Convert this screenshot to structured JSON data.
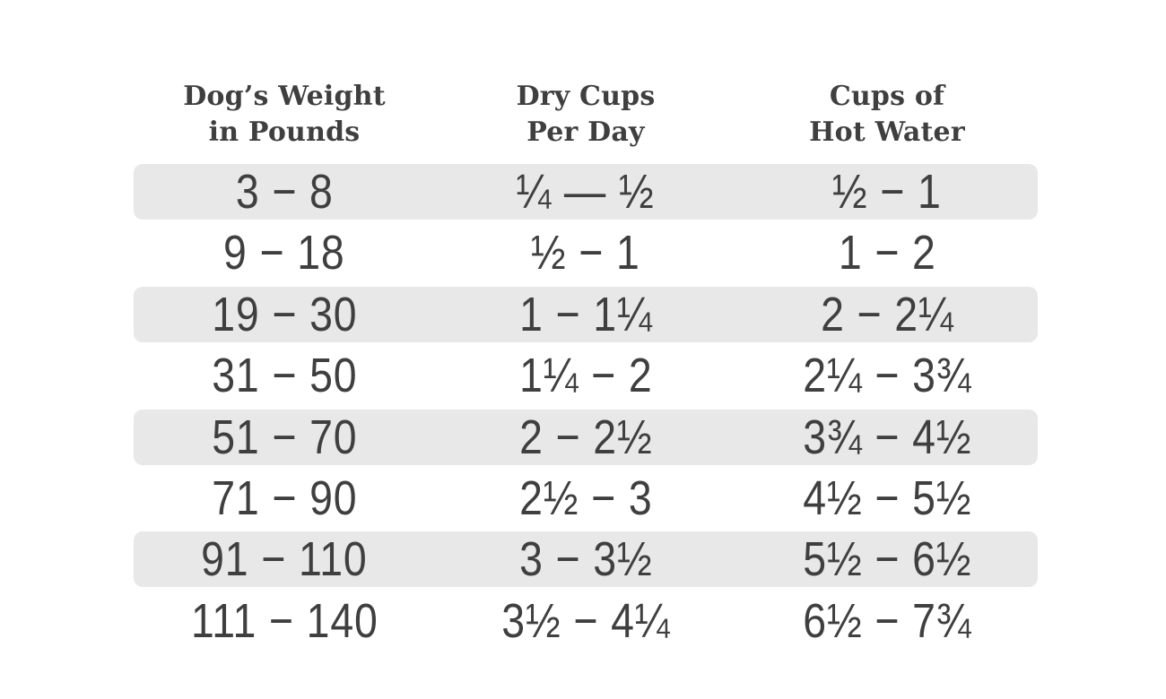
{
  "page": {
    "background_color": "#ffffff",
    "text_color": "#3f3f3f",
    "shaded_row_color": "#e8e8e8"
  },
  "table": {
    "headers": [
      {
        "line1": "Dog’s Weight",
        "line2": "in Pounds"
      },
      {
        "line1": "Dry Cups",
        "line2": "Per Day"
      },
      {
        "line1": "Cups of",
        "line2": "Hot Water"
      }
    ],
    "rows": [
      {
        "cells": [
          "3 − 8",
          "¼ — ½",
          "½ − 1"
        ],
        "shaded": true
      },
      {
        "cells": [
          "9 − 18",
          "½ − 1",
          "1 − 2"
        ],
        "shaded": false
      },
      {
        "cells": [
          "19 − 30",
          "1 − 1¼",
          "2 − 2¼"
        ],
        "shaded": true
      },
      {
        "cells": [
          "31 − 50",
          "1¼ − 2",
          "2¼ − 3¾"
        ],
        "shaded": false
      },
      {
        "cells": [
          "51 − 70",
          "2 − 2½",
          "3¾ − 4½"
        ],
        "shaded": true
      },
      {
        "cells": [
          "71 − 90",
          "2½ − 3",
          "4½ − 5½"
        ],
        "shaded": false
      },
      {
        "cells": [
          "91 − 110",
          "3 − 3½",
          "5½ − 6½"
        ],
        "shaded": true
      },
      {
        "cells": [
          "111 − 140",
          "3½ − 4¼",
          "6½ − 7¾"
        ],
        "shaded": false
      }
    ]
  },
  "chart_data": {
    "type": "table",
    "columns": [
      "Dog's Weight in Pounds",
      "Dry Cups Per Day",
      "Cups of Hot Water"
    ],
    "rows": [
      [
        "3 − 8",
        "¼ — ½",
        "½ − 1"
      ],
      [
        "9 − 18",
        "½ − 1",
        "1 − 2"
      ],
      [
        "19 − 30",
        "1 − 1¼",
        "2 − 2¼"
      ],
      [
        "31 − 50",
        "1¼ − 2",
        "2¼ − 3¾"
      ],
      [
        "51 − 70",
        "2 − 2½",
        "3¾ − 4½"
      ],
      [
        "71 − 90",
        "2½ − 3",
        "4½ − 5½"
      ],
      [
        "91 − 110",
        "3 − 3½",
        "5½ − 6½"
      ],
      [
        "111 − 140",
        "3½ − 4¼",
        "6½ − 7¾"
      ]
    ],
    "rows_numeric": [
      {
        "weight_lb": [
          3,
          8
        ],
        "dry_cups_per_day": [
          0.25,
          0.5
        ],
        "cups_hot_water": [
          0.5,
          1
        ]
      },
      {
        "weight_lb": [
          9,
          18
        ],
        "dry_cups_per_day": [
          0.5,
          1
        ],
        "cups_hot_water": [
          1,
          2
        ]
      },
      {
        "weight_lb": [
          19,
          30
        ],
        "dry_cups_per_day": [
          1,
          1.25
        ],
        "cups_hot_water": [
          2,
          2.25
        ]
      },
      {
        "weight_lb": [
          31,
          50
        ],
        "dry_cups_per_day": [
          1.25,
          2
        ],
        "cups_hot_water": [
          2.25,
          3.75
        ]
      },
      {
        "weight_lb": [
          51,
          70
        ],
        "dry_cups_per_day": [
          2,
          2.5
        ],
        "cups_hot_water": [
          3.75,
          4.5
        ]
      },
      {
        "weight_lb": [
          71,
          90
        ],
        "dry_cups_per_day": [
          2.5,
          3
        ],
        "cups_hot_water": [
          4.5,
          5.5
        ]
      },
      {
        "weight_lb": [
          91,
          110
        ],
        "dry_cups_per_day": [
          3,
          3.5
        ],
        "cups_hot_water": [
          5.5,
          6.5
        ]
      },
      {
        "weight_lb": [
          111,
          140
        ],
        "dry_cups_per_day": [
          3.5,
          4.25
        ],
        "cups_hot_water": [
          6.5,
          7.75
        ]
      }
    ],
    "layout": {
      "zebra_striping": "odd rows shaded",
      "alignment": "center"
    }
  }
}
